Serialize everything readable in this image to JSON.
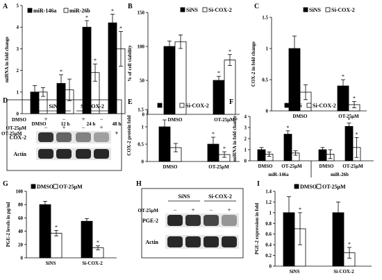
{
  "panel_letters": [
    "A",
    "B",
    "C",
    "D",
    "E",
    "F",
    "G",
    "H",
    "I"
  ],
  "chart_data": [
    {
      "panel": "A",
      "type": "bar",
      "ylabel": "miRNA in fold change",
      "ylim": [
        0,
        5
      ],
      "yticks": [
        0,
        1,
        2,
        3,
        4,
        5
      ],
      "categories": [
        "DMSO",
        "12 h",
        "24 h",
        "48 h"
      ],
      "series": [
        {
          "name": "miR-146a",
          "fill": "#000000",
          "values": [
            1.0,
            1.4,
            4.0,
            4.2
          ],
          "errors": [
            0.3,
            0.4,
            0.3,
            0.4
          ],
          "sig": [
            "",
            "*",
            "*",
            "*"
          ]
        },
        {
          "name": "miR-26b",
          "fill": "#ffffff",
          "values": [
            1.0,
            1.1,
            1.9,
            3.0
          ],
          "errors": [
            0.2,
            0.5,
            0.4,
            0.8
          ],
          "sig": [
            "",
            "",
            "*",
            "*"
          ]
        }
      ],
      "grid": false,
      "legend": "top-left",
      "treatment_label": "OT-25µM",
      "treatment_signs": [
        "−",
        "+",
        "+",
        "+"
      ]
    },
    {
      "panel": "B",
      "type": "bar",
      "ylabel": "% of cell viability",
      "ylim": [
        0,
        150
      ],
      "yticks": [
        0,
        50,
        100,
        150
      ],
      "categories": [
        "DMSO",
        "OT-25µM"
      ],
      "series": [
        {
          "name": "SiNS",
          "fill": "#000000",
          "values": [
            100,
            50
          ],
          "errors": [
            8,
            6
          ],
          "sig": [
            "",
            "*"
          ]
        },
        {
          "name": "Si-COX-2",
          "fill": "#ffffff",
          "values": [
            107,
            80
          ],
          "errors": [
            10,
            8
          ],
          "sig": [
            "",
            "*"
          ]
        }
      ],
      "grid": false,
      "legend": "top"
    },
    {
      "panel": "C",
      "type": "bar",
      "ylabel": "COX-2 in fold change",
      "ylim": [
        0,
        1.5
      ],
      "yticks": [
        0,
        0.5,
        1,
        1.5
      ],
      "categories": [
        "DMSO",
        "OT-25µM"
      ],
      "series": [
        {
          "name": "SiNS",
          "fill": "#000000",
          "values": [
            1.0,
            0.4
          ],
          "errors": [
            0.2,
            0.1
          ],
          "sig": [
            "",
            "*"
          ]
        },
        {
          "name": "Si-COX-2",
          "fill": "#ffffff",
          "values": [
            0.3,
            0.1
          ],
          "errors": [
            0.12,
            0.05
          ],
          "sig": [
            "",
            "*"
          ]
        }
      ],
      "grid": false,
      "legend": "top"
    },
    {
      "panel": "E",
      "type": "bar",
      "ylabel": "COX-2 protein fold",
      "ylim": [
        0,
        1.5
      ],
      "yticks": [
        0,
        0.5,
        1,
        1.5
      ],
      "categories": [
        "DMSO",
        "OT-25µM"
      ],
      "series": [
        {
          "name": "SiNS",
          "fill": "#000000",
          "values": [
            1.0,
            0.5
          ],
          "errors": [
            0.2,
            0.2
          ],
          "sig": [
            "",
            "*"
          ]
        },
        {
          "name": "Si-COX-2",
          "fill": "#ffffff",
          "values": [
            0.4,
            0.2
          ],
          "errors": [
            0.12,
            0.08
          ],
          "sig": [
            "",
            "*"
          ]
        }
      ],
      "grid": false,
      "legend": "top"
    },
    {
      "panel": "F",
      "type": "bar",
      "ylabel": "miRNA in fold change",
      "ylim": [
        0,
        4
      ],
      "yticks": [
        0,
        1,
        2,
        3,
        4
      ],
      "categories": [
        "DMSO",
        "OT-25µM",
        "DMSO",
        "OT-25µM"
      ],
      "groups": [
        "miR-146a",
        "miR-26b"
      ],
      "series": [
        {
          "name": "SiNS",
          "fill": "#000000",
          "values": [
            1.0,
            2.4,
            1.0,
            3.1
          ],
          "errors": [
            0.2,
            0.3,
            0.2,
            0.3
          ],
          "sig": [
            "",
            "*",
            "",
            "*"
          ]
        },
        {
          "name": "Si-COX-2",
          "fill": "#ffffff",
          "values": [
            0.6,
            0.7,
            0.6,
            1.2
          ],
          "errors": [
            0.2,
            0.2,
            0.4,
            0.9
          ],
          "sig": [
            "",
            "",
            "",
            "*"
          ]
        }
      ],
      "grid": false,
      "legend": "top"
    },
    {
      "panel": "G",
      "type": "bar",
      "ylabel": "PGE-2 levels in pg/ml",
      "ylim": [
        0,
        100
      ],
      "yticks": [
        0,
        20,
        40,
        60,
        80,
        100
      ],
      "categories": [
        "SiNS",
        "Si-COX-2"
      ],
      "series": [
        {
          "name": "DMSO",
          "fill": "#000000",
          "values": [
            80,
            55
          ],
          "errors": [
            5,
            4
          ],
          "sig": [
            "",
            ""
          ]
        },
        {
          "name": "OT-25µM",
          "fill": "#ffffff",
          "values": [
            37,
            15
          ],
          "errors": [
            4,
            3
          ],
          "sig": [
            "*",
            "*"
          ]
        }
      ],
      "grid": false,
      "legend": "top"
    },
    {
      "panel": "I",
      "type": "bar",
      "ylabel": "PGE-2 expression in fold",
      "ylim": [
        0,
        1.4
      ],
      "yticks": [
        0,
        0.2,
        0.4,
        0.6,
        0.8,
        1,
        1.2,
        1.4
      ],
      "categories": [
        "SiNS",
        "Si-COX-2"
      ],
      "series": [
        {
          "name": "DMSO",
          "fill": "#000000",
          "values": [
            1.0,
            1.0
          ],
          "errors": [
            0.3,
            0.2
          ],
          "sig": [
            "",
            ""
          ]
        },
        {
          "name": "OT-25µM",
          "fill": "#ffffff",
          "values": [
            0.7,
            0.25
          ],
          "errors": [
            0.3,
            0.1
          ],
          "sig": [
            "*",
            "*"
          ]
        }
      ],
      "grid": false,
      "legend": "top"
    }
  ],
  "blots": [
    {
      "panel": "D",
      "groups": [
        "SiNS",
        "Si-COX-2"
      ],
      "condition_rows": [
        {
          "label": "DMSO",
          "signs": [
            "+",
            "−",
            "+",
            "−"
          ]
        },
        {
          "label": "OT-25µM",
          "signs": [
            "−",
            "+",
            "−",
            "+"
          ]
        }
      ],
      "bands": [
        {
          "label": "COX-2",
          "intensity": [
            0.9,
            0.65,
            0.5,
            0.35
          ]
        },
        {
          "label": "Actin",
          "intensity": [
            0.95,
            0.95,
            0.95,
            0.95
          ]
        }
      ]
    },
    {
      "panel": "H",
      "groups": [
        "SiNS",
        "Si-COX-2"
      ],
      "condition_rows": [
        {
          "label": "OT-25µM",
          "signs": [
            "−",
            "+",
            "−",
            "+"
          ]
        }
      ],
      "bands": [
        {
          "label": "PGE-2",
          "intensity": [
            0.95,
            0.9,
            0.8,
            0.4
          ]
        },
        {
          "label": "Actin",
          "intensity": [
            0.95,
            0.95,
            0.95,
            0.95
          ]
        }
      ]
    }
  ]
}
